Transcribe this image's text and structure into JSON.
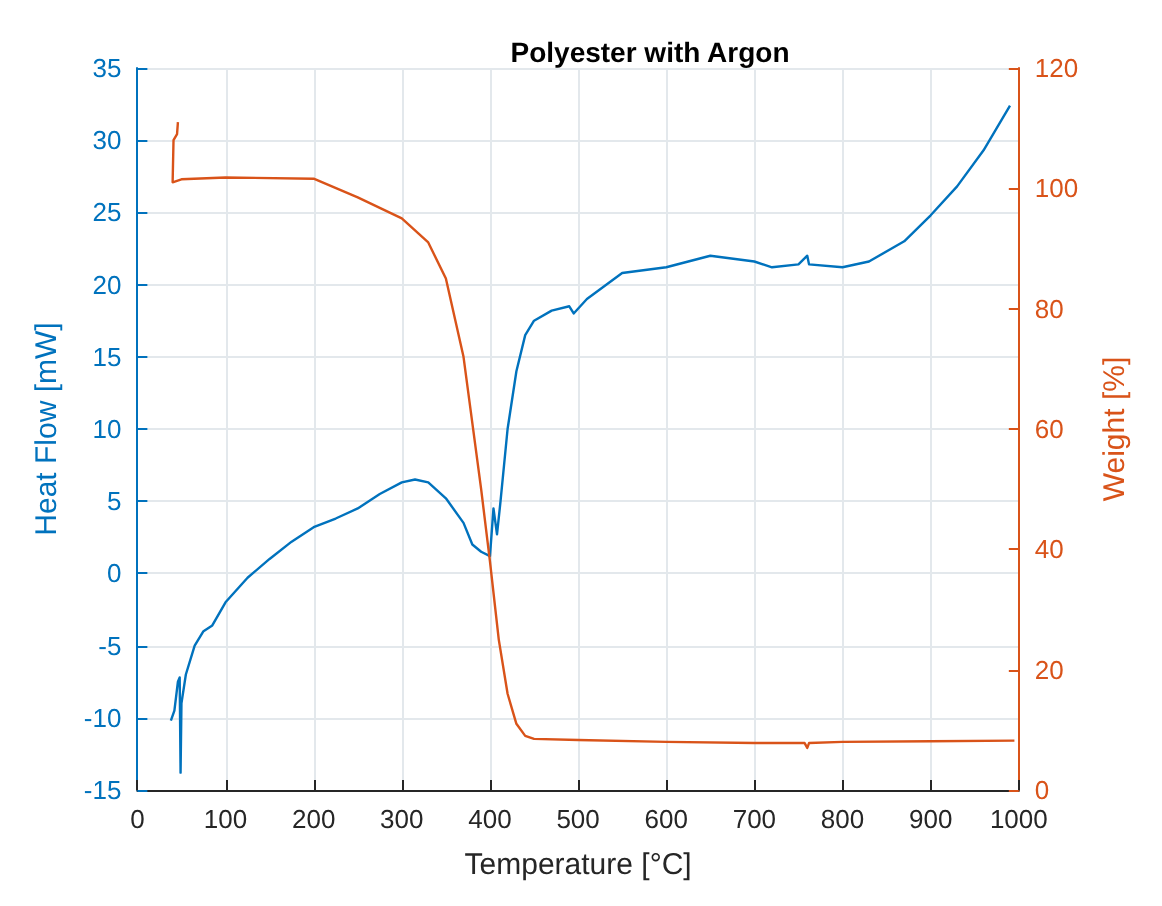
{
  "chart_data": {
    "type": "line",
    "title": "Polyester with Argon",
    "xlabel": "Temperature [°C]",
    "ylabel": "Heat Flow [mW]",
    "y2label": "Weight [%]",
    "xlim": [
      0,
      1000
    ],
    "xticks": [
      0,
      100,
      200,
      300,
      400,
      500,
      600,
      700,
      800,
      900,
      1000
    ],
    "ylim": [
      -15,
      35
    ],
    "yticks": [
      -15,
      -10,
      -5,
      0,
      5,
      10,
      15,
      20,
      25,
      30,
      35
    ],
    "y2lim": [
      0,
      120
    ],
    "y2ticks": [
      0,
      20,
      40,
      60,
      80,
      100,
      120
    ],
    "grid": true,
    "marker": "none",
    "line_style": "solid",
    "series": [
      {
        "color": "#0072bd",
        "x": [
          38,
          42,
          46,
          48,
          49,
          50,
          55,
          65,
          75,
          85,
          100,
          125,
          150,
          175,
          200,
          225,
          250,
          275,
          300,
          315,
          330,
          350,
          370,
          380,
          390,
          400,
          404,
          408,
          412,
          420,
          430,
          440,
          450,
          470,
          490,
          495,
          510,
          550,
          600,
          650,
          700,
          720,
          750,
          760,
          762,
          800,
          830,
          870,
          900,
          930,
          960,
          990
        ],
        "values": [
          -10.2,
          -9.5,
          -7.5,
          -7.2,
          -13.8,
          -9,
          -7,
          -5,
          -4,
          -3.6,
          -2,
          -0.3,
          1,
          2.2,
          3.2,
          3.8,
          4.5,
          5.5,
          6.3,
          6.5,
          6.3,
          5.2,
          3.5,
          2,
          1.5,
          1.2,
          4.5,
          2.7,
          5,
          10,
          14,
          16.5,
          17.5,
          18.2,
          18.5,
          18,
          19,
          20.8,
          21.2,
          22,
          21.6,
          21.2,
          21.4,
          22,
          21.4,
          21.2,
          21.6,
          23,
          24.8,
          26.8,
          29.3,
          32.4
        ]
      },
      {
        "color": "#d95319",
        "axis": "y2",
        "x": [
          46,
          45,
          41,
          40,
          50,
          100,
          200,
          250,
          300,
          330,
          350,
          370,
          390,
          400,
          410,
          420,
          430,
          440,
          450,
          500,
          600,
          700,
          757,
          760,
          762,
          800,
          900,
          995
        ],
        "values": [
          111,
          109,
          108,
          101,
          101.5,
          101.8,
          101.6,
          98.5,
          95,
          91,
          85,
          72,
          50,
          38,
          25,
          16,
          11,
          9,
          8.5,
          8.3,
          8,
          7.8,
          7.8,
          7,
          7.8,
          8,
          8.1,
          8.2
        ]
      }
    ]
  }
}
